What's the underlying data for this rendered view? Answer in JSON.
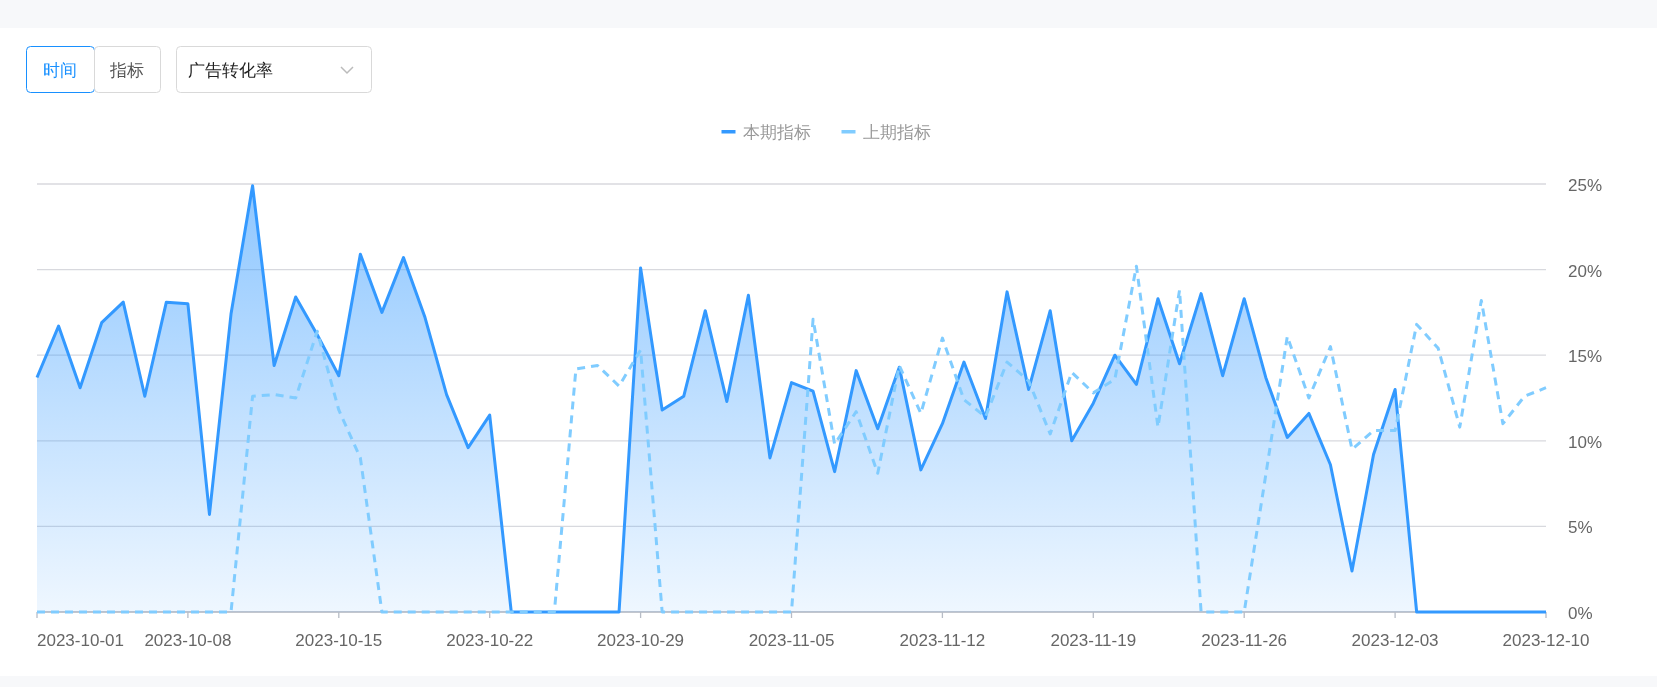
{
  "chart_data": {
    "type": "line",
    "annotations": [
      "时间",
      "指标",
      "广告转化率"
    ],
    "x": [
      "2023-10-01",
      "2023-10-02",
      "2023-10-03",
      "2023-10-04",
      "2023-10-05",
      "2023-10-06",
      "2023-10-07",
      "2023-10-08",
      "2023-10-09",
      "2023-10-10",
      "2023-10-11",
      "2023-10-12",
      "2023-10-13",
      "2023-10-14",
      "2023-10-15",
      "2023-10-16",
      "2023-10-17",
      "2023-10-18",
      "2023-10-19",
      "2023-10-20",
      "2023-10-21",
      "2023-10-22",
      "2023-10-23",
      "2023-10-24",
      "2023-10-25",
      "2023-10-26",
      "2023-10-27",
      "2023-10-28",
      "2023-10-29",
      "2023-10-30",
      "2023-10-31",
      "2023-11-01",
      "2023-11-02",
      "2023-11-03",
      "2023-11-04",
      "2023-11-05",
      "2023-11-06",
      "2023-11-07",
      "2023-11-08",
      "2023-11-09",
      "2023-11-10",
      "2023-11-11",
      "2023-11-12",
      "2023-11-13",
      "2023-11-14",
      "2023-11-15",
      "2023-11-16",
      "2023-11-17",
      "2023-11-18",
      "2023-11-19",
      "2023-11-20",
      "2023-11-21",
      "2023-11-22",
      "2023-11-23",
      "2023-11-24",
      "2023-11-25",
      "2023-11-26",
      "2023-11-27",
      "2023-11-28",
      "2023-11-29",
      "2023-11-30",
      "2023-12-01",
      "2023-12-02",
      "2023-12-03",
      "2023-12-04",
      "2023-12-05",
      "2023-12-06",
      "2023-12-07",
      "2023-12-08",
      "2023-12-09",
      "2023-12-10"
    ],
    "series": [
      {
        "name": "本期指标",
        "type": "area",
        "color": "#3399ff",
        "line_style": "solid",
        "values": [
          13.7,
          16.7,
          13.1,
          16.9,
          18.1,
          12.6,
          18.1,
          18.0,
          5.7,
          17.4,
          24.9,
          14.4,
          18.4,
          16.2,
          13.8,
          20.9,
          17.5,
          20.7,
          17.2,
          12.7,
          9.6,
          11.5,
          0,
          0,
          0,
          0,
          0,
          0,
          20.1,
          11.8,
          12.6,
          17.6,
          12.3,
          18.5,
          9.0,
          13.4,
          12.9,
          8.2,
          14.1,
          10.7,
          14.3,
          8.3,
          11.0,
          14.6,
          11.3,
          18.7,
          13.0,
          17.6,
          10.0,
          12.2,
          15.0,
          13.3,
          18.3,
          14.5,
          18.6,
          13.8,
          18.3,
          13.7,
          10.2,
          11.6,
          8.6,
          2.4,
          9.2,
          13.0,
          0,
          0,
          0,
          0,
          0,
          0,
          0
        ]
      },
      {
        "name": "上期指标",
        "type": "line",
        "color": "#80ccff",
        "line_style": "dashed",
        "values": [
          0,
          0,
          0,
          0,
          0,
          0,
          0,
          0,
          0,
          0,
          12.6,
          12.7,
          12.5,
          16.4,
          11.8,
          9.0,
          0,
          0,
          0,
          0,
          0,
          0,
          0,
          0,
          0,
          14.2,
          14.4,
          13.2,
          15.3,
          0,
          0,
          0,
          0,
          0,
          0,
          0,
          17.1,
          9.8,
          11.7,
          8.1,
          14.4,
          11.6,
          16.0,
          12.4,
          11.4,
          14.6,
          13.5,
          10.4,
          14.0,
          12.8,
          13.6,
          20.2,
          10.8,
          18.8,
          0,
          0,
          0,
          8.0,
          16.1,
          12.5,
          15.5,
          9.5,
          10.6,
          10.6,
          16.8,
          15.4,
          10.8,
          18.2,
          11.0,
          12.6,
          13.1
        ]
      }
    ],
    "xlim": [
      "2023-10-01",
      "2023-12-10"
    ],
    "xticks": [
      "2023-10-01",
      "2023-10-08",
      "2023-10-15",
      "2023-10-22",
      "2023-10-29",
      "2023-11-05",
      "2023-11-12",
      "2023-11-19",
      "2023-11-26",
      "2023-12-03",
      "2023-12-10"
    ],
    "ylim": [
      0,
      25
    ],
    "yticks": [
      {
        "value": 0,
        "label": "0%"
      },
      {
        "value": 5,
        "label": "5%"
      },
      {
        "value": 10,
        "label": "10%"
      },
      {
        "value": 15,
        "label": "15%"
      },
      {
        "value": 20,
        "label": "20%"
      },
      {
        "value": 25,
        "label": "25%"
      }
    ],
    "grid": "y",
    "legend": "top",
    "marker": "none"
  }
}
